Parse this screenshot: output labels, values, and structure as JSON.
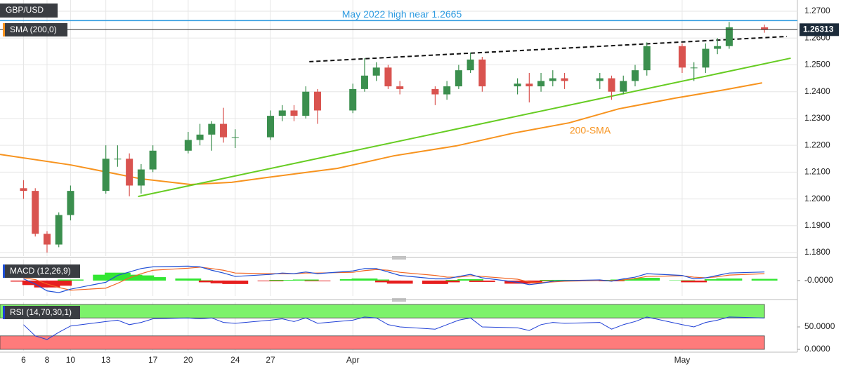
{
  "chart_data": [
    {
      "type": "candlestick",
      "title": "GBP/USD",
      "x": [
        6,
        7,
        8,
        9,
        10,
        13,
        14,
        15,
        16,
        17,
        20,
        21,
        22,
        23,
        24,
        27,
        28,
        29,
        30,
        31,
        34,
        35,
        36,
        37,
        38,
        41,
        42,
        43,
        44,
        45,
        48,
        49,
        50,
        51,
        52,
        55,
        56,
        57,
        58,
        59,
        62,
        63,
        64,
        65,
        66,
        69
      ],
      "open": [
        1.204,
        1.203,
        1.187,
        1.183,
        1.194,
        1.203,
        1.215,
        1.215,
        1.205,
        1.211,
        1.218,
        1.222,
        1.224,
        1.228,
        1.223,
        1.223,
        1.231,
        1.233,
        1.231,
        1.24,
        1.233,
        1.241,
        1.246,
        1.249,
        1.242,
        1.241,
        1.239,
        1.242,
        1.248,
        1.252,
        1.242,
        1.243,
        1.242,
        1.244,
        1.245,
        1.244,
        1.245,
        1.24,
        1.244,
        1.248,
        1.257,
        1.249,
        1.249,
        1.256,
        1.257,
        1.264
      ],
      "high": [
        1.207,
        1.204,
        1.188,
        1.195,
        1.205,
        1.22,
        1.22,
        1.217,
        1.213,
        1.22,
        1.225,
        1.228,
        1.229,
        1.234,
        1.226,
        1.233,
        1.235,
        1.235,
        1.242,
        1.241,
        1.243,
        1.2525,
        1.251,
        1.25,
        1.244,
        1.242,
        1.244,
        1.25,
        1.2546,
        1.253,
        1.245,
        1.247,
        1.247,
        1.248,
        1.247,
        1.247,
        1.246,
        1.246,
        1.25,
        1.2584,
        1.258,
        1.251,
        1.258,
        1.26,
        1.266,
        1.265
      ],
      "low": [
        1.2,
        1.186,
        1.18,
        1.182,
        1.192,
        1.202,
        1.212,
        1.201,
        1.202,
        1.21,
        1.217,
        1.22,
        1.218,
        1.221,
        1.219,
        1.222,
        1.229,
        1.229,
        1.23,
        1.228,
        1.232,
        1.24,
        1.244,
        1.241,
        1.239,
        1.235,
        1.237,
        1.241,
        1.247,
        1.24,
        1.239,
        1.236,
        1.24,
        1.242,
        1.241,
        1.241,
        1.237,
        1.239,
        1.242,
        1.246,
        1.247,
        1.244,
        1.247,
        1.254,
        1.256,
        1.262
      ],
      "close": [
        1.203,
        1.187,
        1.183,
        1.194,
        1.203,
        1.215,
        1.215,
        1.205,
        1.211,
        1.218,
        1.222,
        1.224,
        1.228,
        1.223,
        1.223,
        1.231,
        1.233,
        1.231,
        1.24,
        1.233,
        1.241,
        1.246,
        1.249,
        1.242,
        1.241,
        1.239,
        1.242,
        1.248,
        1.252,
        1.242,
        1.243,
        1.242,
        1.244,
        1.245,
        1.244,
        1.245,
        1.24,
        1.244,
        1.248,
        1.257,
        1.249,
        1.249,
        1.256,
        1.257,
        1.264,
        1.26313
      ],
      "up_color": "#3b8f4e",
      "down_color": "#d9534f",
      "xlim": [
        4.0,
        71.8
      ],
      "xticks": [
        6,
        13,
        20,
        27,
        {
          "value": 34,
          "label": "Apr"
        },
        10,
        17,
        24,
        {
          "value": 62,
          "label": "May"
        },
        8
      ],
      "ylim": [
        1.1787,
        1.2742
      ],
      "yticks": [
        {
          "value": 1.27,
          "label": "1.2700"
        },
        {
          "value": 1.26,
          "label": "1.2600"
        },
        {
          "value": 1.25,
          "label": "1.2500"
        },
        {
          "value": 1.24,
          "label": "1.2400"
        },
        {
          "value": 1.23,
          "label": "1.2300"
        },
        {
          "value": 1.22,
          "label": "1.2200"
        },
        {
          "value": 1.21,
          "label": "1.2100"
        },
        {
          "value": 1.2,
          "label": "1.2000"
        },
        {
          "value": 1.19,
          "label": "1.1900"
        },
        {
          "value": 1.18,
          "label": "1.1800"
        }
      ],
      "grid": true,
      "sma": {
        "name": "SMA (200,0)",
        "label": "200-SMA",
        "color": "#f7931e",
        "x": [
          4.0,
          10.0,
          16.0,
          20.2,
          23.7,
          26.7,
          32.7,
          37.5,
          42.8,
          47.6,
          52.4,
          56.6,
          61.4,
          65.6,
          68.8
        ],
        "values": [
          1.2166,
          1.2127,
          1.2075,
          1.2054,
          1.2062,
          1.208,
          1.2114,
          1.2161,
          1.2198,
          1.2245,
          1.2284,
          1.2336,
          1.2376,
          1.2407,
          1.2433
        ]
      },
      "trendlines": [
        {
          "x": [
            15.74,
            71.23
          ],
          "values": [
            1.2009,
            1.2525
          ],
          "color": "#66cc22",
          "style": "solid"
        },
        {
          "x": [
            30.3,
            70.9
          ],
          "values": [
            1.2512,
            1.2606
          ],
          "color": "#111111",
          "style": "dashed"
        }
      ],
      "annotations": [
        {
          "text": "May 2022 high near 1.2665",
          "value": 1.2665,
          "color": "#2f9be0"
        }
      ],
      "last_price": {
        "value": 1.26313,
        "label": "1.26313"
      }
    },
    {
      "type": "macd",
      "title": "MACD (12,26,9)",
      "macd": [
        0.0005,
        -0.001,
        -0.003,
        -0.0035,
        -0.0025,
        -0.0005,
        0.0015,
        0.0025,
        0.0035,
        0.004,
        0.0042,
        0.004,
        0.003,
        0.0022,
        0.0012,
        0.0018,
        0.0022,
        0.002,
        0.0025,
        0.002,
        0.0028,
        0.0035,
        0.0035,
        0.0025,
        0.0015,
        0.0005,
        0.0005,
        0.0012,
        0.0018,
        0.0008,
        -0.0005,
        -0.0012,
        -0.0008,
        -0.0002,
        0.0,
        0.0002,
        -0.0002,
        0.0005,
        0.001,
        0.002,
        0.0015,
        0.0005,
        0.0008,
        0.0015,
        0.0022,
        0.0025
      ],
      "signal": [
        0.0008,
        0.0003,
        -0.001,
        -0.002,
        -0.0028,
        -0.0022,
        -0.0008,
        0.0008,
        0.002,
        0.003,
        0.0036,
        0.0039,
        0.0035,
        0.003,
        0.0022,
        0.002,
        0.002,
        0.002,
        0.0022,
        0.0022,
        0.0024,
        0.0029,
        0.0032,
        0.003,
        0.0024,
        0.0015,
        0.001,
        0.001,
        0.0014,
        0.0012,
        0.0004,
        -0.0004,
        -0.0006,
        -0.0004,
        -0.0002,
        0.0,
        0.0,
        0.0002,
        0.0006,
        0.0012,
        0.0014,
        0.001,
        0.0008,
        0.0011,
        0.0016,
        0.002
      ],
      "histogram": [
        -0.0003,
        -0.0013,
        -0.002,
        -0.0015,
        0.0003,
        0.0017,
        0.0023,
        0.0017,
        0.0015,
        0.001,
        0.0006,
        0.0001,
        -0.0005,
        -0.0008,
        -0.001,
        -0.0002,
        0.0002,
        0.0,
        0.0003,
        -0.0002,
        0.0004,
        0.0006,
        0.0003,
        -0.0005,
        -0.0009,
        -0.001,
        -0.0005,
        0.0002,
        0.0004,
        -0.0004,
        -0.0009,
        -0.0008,
        -0.0002,
        0.0002,
        0.0002,
        0.0002,
        -0.0002,
        0.0003,
        0.0004,
        0.0008,
        0.0001,
        -0.0005,
        0.0,
        0.0004,
        0.0006,
        0.0005
      ],
      "macd_color": "#1f4fd6",
      "signal_color": "#f26522",
      "up_color": "#33e633",
      "down_color": "#e61e1e",
      "ylim": [
        -0.0045,
        0.0055
      ],
      "yticks": [
        {
          "value": 0,
          "label": "-0.0000"
        }
      ]
    },
    {
      "type": "rsi",
      "title": "RSI (14,70,30,1)",
      "values": [
        55,
        30,
        22,
        38,
        52,
        62,
        65,
        55,
        60,
        68,
        70,
        68,
        70,
        60,
        58,
        65,
        68,
        62,
        70,
        58,
        65,
        72,
        70,
        55,
        50,
        45,
        55,
        65,
        70,
        50,
        48,
        42,
        55,
        60,
        58,
        60,
        45,
        55,
        62,
        72,
        55,
        50,
        60,
        65,
        72,
        70
      ],
      "color": "#1f3fd6",
      "overbought": 70,
      "oversold": 30,
      "overbought_color": "#7df26b",
      "oversold_color": "#ff7b7b",
      "ylim": [
        0,
        100
      ],
      "yticks": [
        {
          "value": 50,
          "label": "50.0000"
        },
        {
          "value": 0,
          "label": "0.0000"
        }
      ]
    }
  ]
}
